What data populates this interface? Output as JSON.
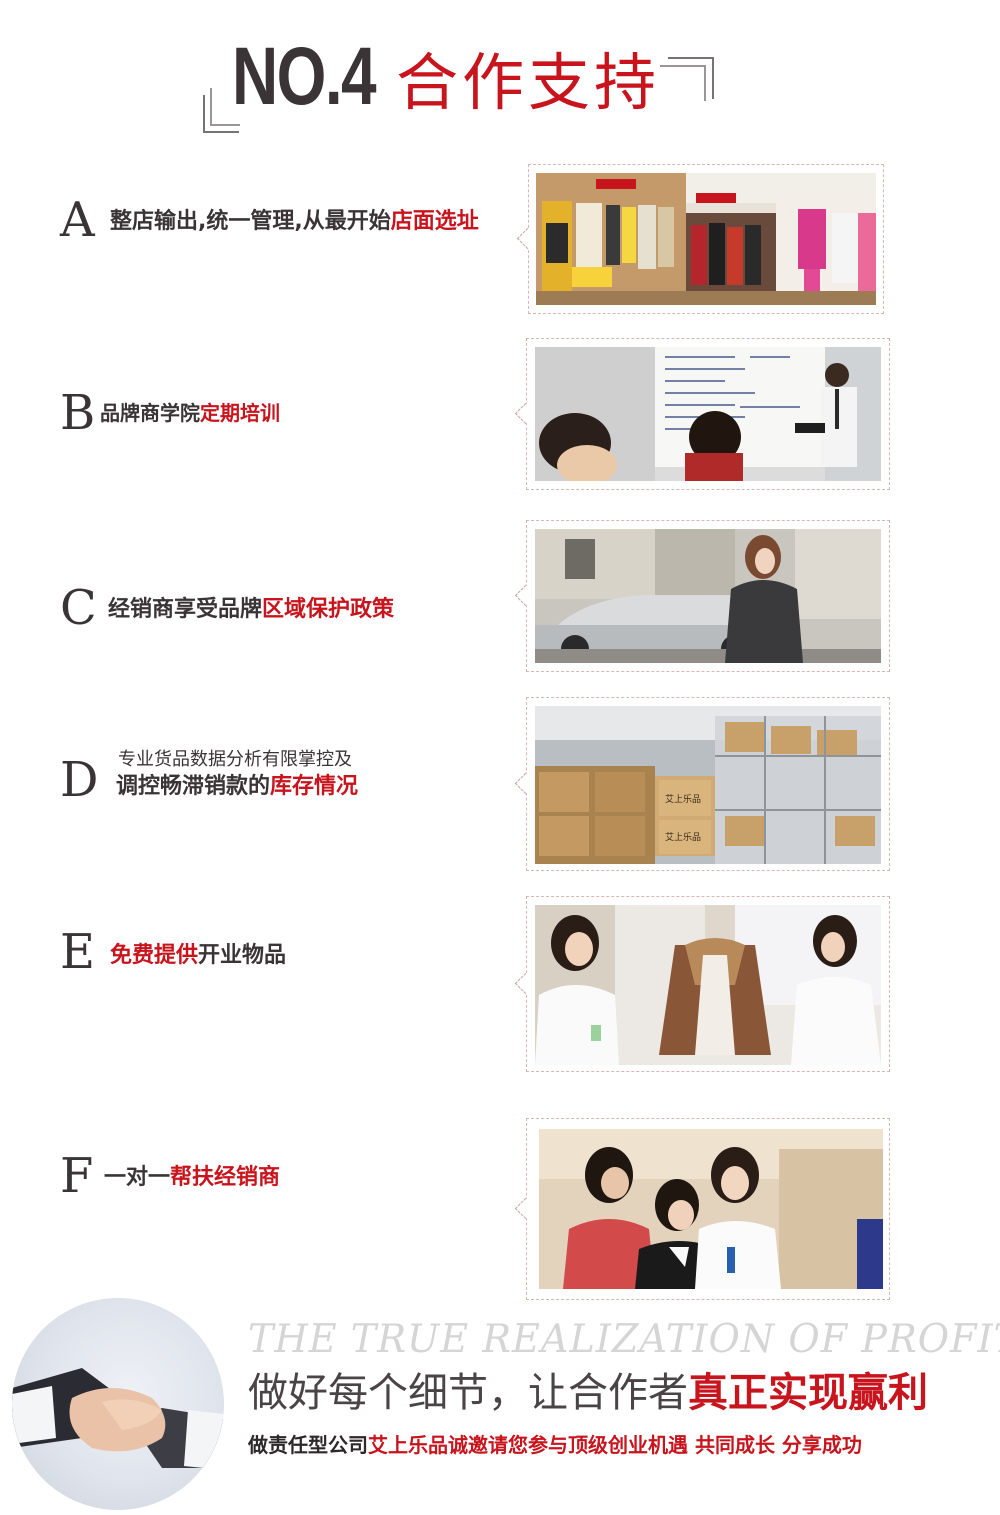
{
  "header": {
    "number": "NO.4",
    "title": "合作支持"
  },
  "features": [
    {
      "letter": "A",
      "text": "整店输出,统一管理,从最开始",
      "highlight": "店面选址"
    },
    {
      "letter": "B",
      "text": "品牌商学院",
      "highlight": "定期培训"
    },
    {
      "letter": "C",
      "text": "经销商享受品牌",
      "highlight": "区域保护政策"
    },
    {
      "letter": "D",
      "line1": "专业货品数据分析有限掌控及",
      "text": "调控畅滞销款的",
      "highlight": "库存情况"
    },
    {
      "letter": "E",
      "highlight": "免费提供",
      "text": "开业物品"
    },
    {
      "letter": "F",
      "text": "一对一",
      "highlight": "帮扶经销商"
    }
  ],
  "photos": {
    "warehouse_box_label": "艾上乐品"
  },
  "footer": {
    "english": "THE TRUE REALIZATION OF PROFIT",
    "slogan": "做好每个细节，让合作者",
    "slogan_highlight": "真正实现赢利",
    "invite_pre": "做责任型公司",
    "invite_highlight": "艾上乐品诚邀请您参与顶级创业机遇 共同成长 分享成功"
  },
  "colors": {
    "accent_red": "#c8141c",
    "text_dark": "#3b3436"
  }
}
